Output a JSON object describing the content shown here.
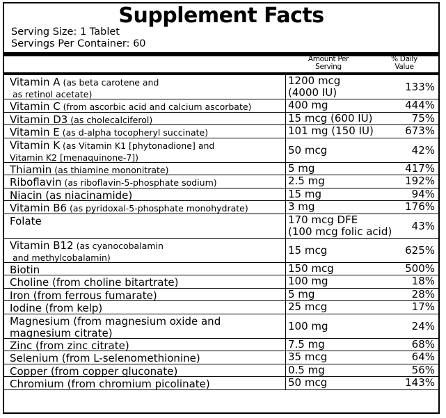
{
  "panel": {
    "title": "Supplement Facts",
    "serving_size": "Serving Size: 1 Tablet",
    "servings_per_container": "Servings Per Container: 60",
    "amount_header_line1": "Amount Per",
    "amount_header_line2": "Serving",
    "dv_header_line1": "% Daily",
    "dv_header_line2": "Value"
  },
  "rows": [
    {
      "name": "Vitamin A",
      "detail": " (as beta carotene and",
      "line2": "as retinol acetate)",
      "line2_small": true,
      "amount": "1200 mcg",
      "amount2": "(4000 IU)",
      "dv": "133%",
      "tall": true
    },
    {
      "name": "Vitamin C",
      "detail": " (from ascorbic acid and calcium ascorbate)",
      "amount": "400 mg",
      "dv": "444%"
    },
    {
      "name": "Vitamin D3",
      "detail": " (as cholecalciferol)",
      "amount": "15 mcg (600 IU)",
      "dv": "75%"
    },
    {
      "name": "Vitamin E",
      "detail": " (as d-alpha tocopheryl succinate)",
      "amount": "101 mg (150 IU)",
      "dv": "673%"
    },
    {
      "name": "Vitamin K",
      "detail": " (as Vitamin K1 [phytonadione] and",
      "line2": "Vitamin K2 [menaquinone-7])",
      "line2_small": true,
      "amount": "50 mcg",
      "dv": "42%",
      "tall": true
    },
    {
      "name": "Thiamin",
      "detail": " (as thiamine mononitrate)",
      "amount": "5 mg",
      "dv": "417%"
    },
    {
      "name": "Riboflavin",
      "detail": " (as riboflavin-5-phosphate sodium)",
      "amount": "2.5 mg",
      "dv": "192%"
    },
    {
      "name": "Niacin (as niacinamide)",
      "detail": "",
      "amount": "15 mg",
      "dv": "94%"
    },
    {
      "name": "Vitamin B6",
      "detail": " (as pyridoxal-5-phosphate monohydrate)",
      "amount": "3 mg",
      "dv": "176%"
    },
    {
      "name": "Folate",
      "detail": "",
      "amount": "170 mcg DFE",
      "amount2": "(100 mcg folic acid)",
      "dv": "43%",
      "tall": true
    },
    {
      "name": "Vitamin B12",
      "detail": " (as cyanocobalamin",
      "line2": "and methylcobalamin)",
      "line2_small": true,
      "amount": "15 mcg",
      "dv": "625%",
      "tall": true
    },
    {
      "name": "Biotin",
      "detail": "",
      "amount": "150 mcg",
      "dv": "500%"
    },
    {
      "name": "Choline (from choline bitartrate)",
      "detail": "",
      "amount": "100 mg",
      "dv": "18%"
    },
    {
      "name": "Iron (from ferrous fumarate)",
      "detail": "",
      "amount": "5 mg",
      "dv": "28%"
    },
    {
      "name": "Iodine (from kelp)",
      "detail": "",
      "amount": "25 mcg",
      "dv": "17%"
    },
    {
      "name": "Magnesium (from magnesium oxide and",
      "detail": "",
      "line2": "magnesium citrate)",
      "line2_small": false,
      "amount": "100 mg",
      "dv": "24%",
      "tall": true
    },
    {
      "name": "Zinc (from zinc citrate)",
      "detail": "",
      "amount": "7.5 mg",
      "dv": "68%"
    },
    {
      "name": "Selenium (from L-selenomethionine)",
      "detail": "",
      "amount": "35 mcg",
      "dv": "64%"
    },
    {
      "name": "Copper (from copper gluconate)",
      "detail": "",
      "amount": "0.5 mg",
      "dv": "56%"
    },
    {
      "name": "Chromium (from chromium picolinate)",
      "detail": "",
      "amount": "50 mcg",
      "dv": "143%"
    }
  ]
}
